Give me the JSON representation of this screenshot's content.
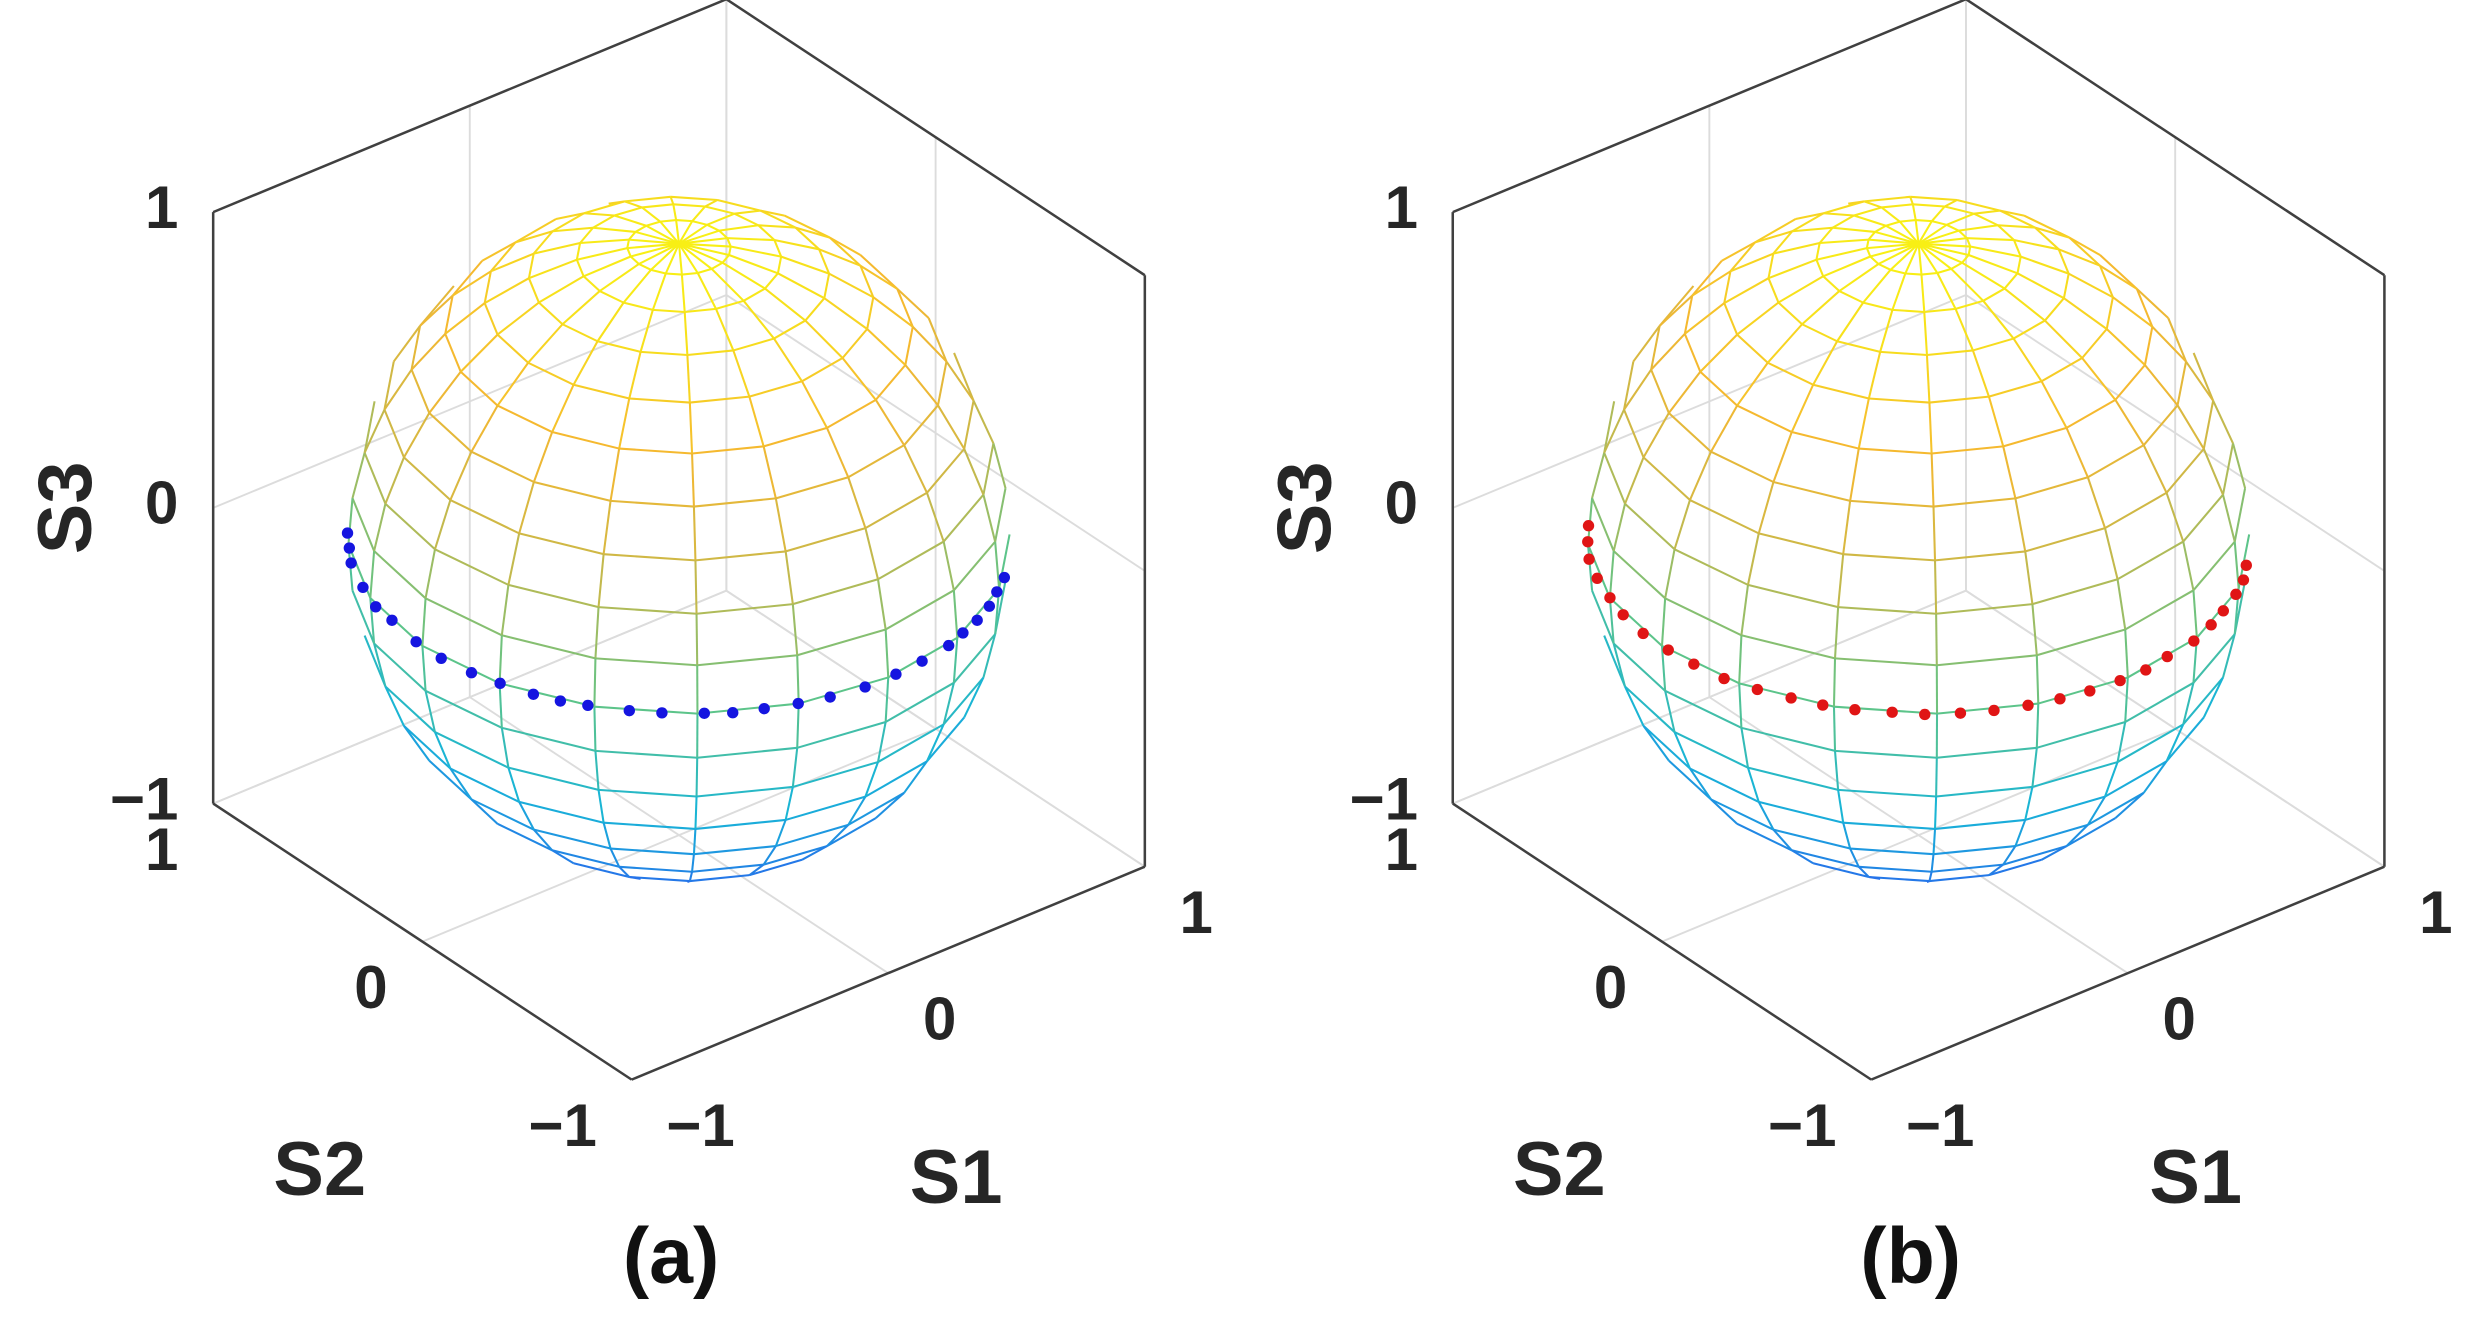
{
  "chart_data": [
    {
      "type": "scatter3d",
      "caption": "(a)",
      "xlabel": "S1",
      "ylabel": "S2",
      "zlabel": "S3",
      "color": "#1515e0",
      "xlim": [
        -1,
        1
      ],
      "ylim": [
        -1,
        1
      ],
      "zlim": [
        -1,
        1
      ],
      "xticks": [
        {
          "value": -1,
          "label": "−1"
        },
        0,
        1
      ],
      "yticks": [
        {
          "value": -1,
          "label": "−1"
        },
        0,
        1
      ],
      "zticks": [
        {
          "value": -1,
          "label": "−1"
        },
        0,
        1
      ],
      "grid": true,
      "x": [
        -0.77,
        -0.82,
        -0.87,
        -0.93,
        -0.97,
        -0.98,
        -1.0,
        -1.0,
        -0.98,
        -0.95,
        -0.91,
        -0.87,
        -0.82,
        -0.74,
        -0.67,
        -0.57,
        -0.5,
        -0.41,
        -0.31,
        -0.21,
        -0.09,
        0.03,
        0.14,
        0.26,
        0.34,
        0.42,
        0.5,
        0.57,
        0.64
      ],
      "y": [
        0.64,
        0.57,
        0.5,
        0.37,
        0.26,
        0.17,
        0.03,
        -0.09,
        -0.21,
        -0.31,
        -0.42,
        -0.5,
        -0.57,
        -0.67,
        -0.74,
        -0.82,
        -0.87,
        -0.91,
        -0.95,
        -0.98,
        -1.0,
        -1.0,
        -0.99,
        -0.97,
        -0.94,
        -0.91,
        -0.87,
        -0.82,
        -0.77
      ],
      "z": [
        0,
        0,
        0,
        0,
        0,
        0,
        0,
        0,
        0,
        0,
        0,
        0,
        0,
        0,
        0,
        0,
        0,
        0,
        0,
        0,
        0,
        0,
        0,
        0,
        0,
        0,
        0,
        0,
        0
      ]
    },
    {
      "type": "scatter3d",
      "caption": "(b)",
      "xlabel": "S1",
      "ylabel": "S2",
      "zlabel": "S3",
      "color": "#e01515",
      "xlim": [
        -1,
        1
      ],
      "ylim": [
        -1,
        1
      ],
      "zlim": [
        -1,
        1
      ],
      "xticks": [
        {
          "value": -1,
          "label": "−1"
        },
        0,
        1
      ],
      "yticks": [
        {
          "value": -1,
          "label": "−1"
        },
        0,
        1
      ],
      "zticks": [
        {
          "value": -1,
          "label": "−1"
        },
        0,
        1
      ],
      "grid": true,
      "x": [
        -0.74,
        -0.8,
        -0.86,
        -0.91,
        -0.95,
        -0.98,
        -1.0,
        -1.0,
        -0.99,
        -0.97,
        -0.93,
        -0.88,
        -0.83,
        -0.77,
        -0.69,
        -0.62,
        -0.53,
        -0.44,
        -0.34,
        -0.24,
        -0.14,
        -0.03,
        0.07,
        0.17,
        0.29,
        0.39,
        0.47,
        0.56,
        0.63,
        0.69
      ],
      "y": [
        0.67,
        0.6,
        0.52,
        0.42,
        0.31,
        0.21,
        0.09,
        -0.03,
        -0.14,
        -0.26,
        -0.37,
        -0.47,
        -0.56,
        -0.64,
        -0.72,
        -0.79,
        -0.85,
        -0.9,
        -0.94,
        -0.97,
        -0.99,
        -1.0,
        -1.0,
        -0.98,
        -0.96,
        -0.92,
        -0.88,
        -0.83,
        -0.78,
        -0.72
      ],
      "z": [
        0,
        0,
        0,
        0,
        0,
        0,
        0,
        0,
        0,
        0,
        0,
        0,
        0,
        0,
        0,
        0,
        0,
        0,
        0,
        0,
        0,
        0,
        0,
        0,
        0,
        0,
        0,
        0,
        0,
        0
      ]
    }
  ]
}
